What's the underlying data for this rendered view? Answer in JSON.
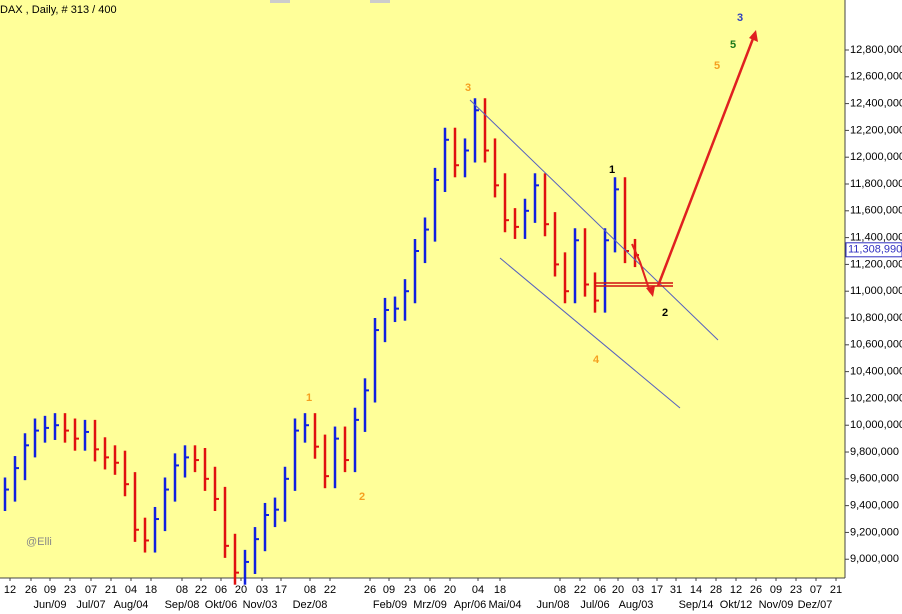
{
  "chart_data": {
    "type": "hlc",
    "title": "DAX , Daily, # 313 / 400",
    "watermark": "@Elli",
    "up_color": "#1020e0",
    "down_color": "#e01010",
    "x": [
      0,
      1,
      2,
      3,
      4,
      5,
      6,
      7,
      8,
      9,
      10,
      11,
      12,
      13,
      14,
      15,
      16,
      17,
      18,
      19,
      20,
      21,
      22,
      23,
      24,
      25,
      26,
      27,
      28,
      29,
      30,
      31,
      32,
      33,
      34,
      35,
      36,
      37,
      38,
      39,
      40,
      41,
      42,
      43,
      44,
      45,
      46,
      47,
      48,
      49,
      50,
      51,
      52,
      53,
      54,
      55,
      56,
      57,
      58,
      59,
      60,
      61,
      62,
      63
    ],
    "series": [
      {
        "name": "high",
        "values": [
          9610000,
          9770000,
          9940000,
          10050000,
          10070000,
          10090000,
          10090000,
          10050000,
          10040000,
          10040000,
          9910000,
          9850000,
          9810000,
          9650000,
          9310000,
          9390000,
          9610000,
          9790000,
          9850000,
          9850000,
          9830000,
          9690000,
          9540000,
          9190000,
          9070000,
          9240000,
          9420000,
          9460000,
          9690000,
          10050000,
          10090000,
          10090000,
          9930000,
          9990000,
          9990000,
          10130000,
          10350000,
          10800000,
          10950000,
          10960000,
          11090000,
          11390000,
          11550000,
          11920000,
          12220000,
          12220000,
          12140000,
          12440000,
          12440000,
          12140000,
          11880000,
          11620000,
          11690000,
          11880000,
          11880000,
          11590000,
          11290000,
          11470000,
          11470000,
          11140000,
          11470000,
          11850000,
          11850000,
          11390000
        ]
      },
      {
        "name": "low",
        "values": [
          9360000,
          9430000,
          9590000,
          9760000,
          9870000,
          9890000,
          9870000,
          9810000,
          9810000,
          9730000,
          9670000,
          9630000,
          9470000,
          9130000,
          9050000,
          9050000,
          9210000,
          9430000,
          9610000,
          9650000,
          9510000,
          9360000,
          9010000,
          8810000,
          8810000,
          8890000,
          9060000,
          9240000,
          9280000,
          9510000,
          9870000,
          9750000,
          9530000,
          9530000,
          9650000,
          9650000,
          9950000,
          10170000,
          10620000,
          10770000,
          10780000,
          10910000,
          11210000,
          11370000,
          11740000,
          11850000,
          11850000,
          11960000,
          11960000,
          11700000,
          11440000,
          11390000,
          11390000,
          11510000,
          11410000,
          11110000,
          10910000,
          10910000,
          10960000,
          10840000,
          10840000,
          11290000,
          11210000,
          11180000
        ]
      },
      {
        "name": "close",
        "values": [
          9520000,
          9680000,
          9850000,
          9960000,
          9980000,
          10000000,
          9960000,
          9900000,
          9950000,
          9820000,
          9760000,
          9720000,
          9560000,
          9220000,
          9140000,
          9300000,
          9520000,
          9700000,
          9760000,
          9740000,
          9600000,
          9450000,
          9100000,
          8900000,
          8980000,
          9150000,
          9330000,
          9370000,
          9600000,
          9960000,
          10000000,
          9840000,
          9620000,
          9900000,
          9740000,
          10040000,
          10260000,
          10710000,
          10860000,
          10870000,
          11000000,
          11300000,
          11460000,
          11830000,
          12130000,
          11940000,
          12050000,
          12350000,
          12050000,
          11790000,
          11530000,
          11480000,
          11600000,
          11790000,
          11500000,
          11200000,
          11000000,
          11380000,
          11050000,
          10930000,
          11380000,
          11760000,
          11300000,
          11270000
        ]
      }
    ],
    "last_price": {
      "value": 11308990,
      "label": "11,308,990"
    },
    "xlim": [
      -0.5,
      84
    ],
    "ylim": [
      8860000,
      13173000
    ],
    "yticks": [
      {
        "value": 9000000,
        "label": "9,000,000"
      },
      {
        "value": 9200000,
        "label": "9,200,000"
      },
      {
        "value": 9400000,
        "label": "9,400,000"
      },
      {
        "value": 9600000,
        "label": "9,600,000"
      },
      {
        "value": 9800000,
        "label": "9,800,000"
      },
      {
        "value": 10000000,
        "label": "10,000,000"
      },
      {
        "value": 10200000,
        "label": "10,200,000"
      },
      {
        "value": 10400000,
        "label": "10,400,000"
      },
      {
        "value": 10600000,
        "label": "10,600,000"
      },
      {
        "value": 10800000,
        "label": "10,800,000"
      },
      {
        "value": 11000000,
        "label": "11,000,000"
      },
      {
        "value": 11200000,
        "label": "11,200,000"
      },
      {
        "value": 11400000,
        "label": "11,400,000"
      },
      {
        "value": 11600000,
        "label": "11,600,000"
      },
      {
        "value": 11800000,
        "label": "11,800,000"
      },
      {
        "value": 12000000,
        "label": "12,000,000"
      },
      {
        "value": 12200000,
        "label": "12,200,000"
      },
      {
        "value": 12400000,
        "label": "12,400,000"
      },
      {
        "value": 12600000,
        "label": "12,600,000"
      },
      {
        "value": 12800000,
        "label": "12,800,000"
      }
    ],
    "xticks": [
      {
        "value": 0.5,
        "label": "12"
      },
      {
        "value": 2.6,
        "label": "26"
      },
      {
        "value": 4.5,
        "label": "09"
      },
      {
        "value": 6.5,
        "label": "23"
      },
      {
        "value": 8.6,
        "label": "07"
      },
      {
        "value": 10.6,
        "label": "21"
      },
      {
        "value": 12.6,
        "label": "04"
      },
      {
        "value": 14.6,
        "label": "18"
      },
      {
        "value": 17.7,
        "label": "08"
      },
      {
        "value": 19.6,
        "label": "22"
      },
      {
        "value": 21.6,
        "label": "06"
      },
      {
        "value": 23.6,
        "label": "20"
      },
      {
        "value": 25.7,
        "label": "03"
      },
      {
        "value": 27.6,
        "label": "17"
      },
      {
        "value": 30.5,
        "label": "08"
      },
      {
        "value": 32.5,
        "label": "22"
      },
      {
        "value": 36.5,
        "label": "26"
      },
      {
        "value": 38.4,
        "label": "09"
      },
      {
        "value": 40.5,
        "label": "23"
      },
      {
        "value": 42.5,
        "label": "06"
      },
      {
        "value": 44.5,
        "label": "20"
      },
      {
        "value": 47.3,
        "label": "04"
      },
      {
        "value": 49.5,
        "label": "18"
      },
      {
        "value": 55.5,
        "label": "08"
      },
      {
        "value": 57.5,
        "label": "22"
      },
      {
        "value": 59.5,
        "label": "06"
      },
      {
        "value": 61.3,
        "label": "20"
      },
      {
        "value": 63.3,
        "label": "03"
      },
      {
        "value": 65.2,
        "label": "17"
      },
      {
        "value": 67.1,
        "label": "31"
      },
      {
        "value": 69.1,
        "label": "14"
      },
      {
        "value": 71.1,
        "label": "28"
      },
      {
        "value": 73.1,
        "label": "12"
      },
      {
        "value": 75.1,
        "label": "26"
      },
      {
        "value": 77.1,
        "label": "09"
      },
      {
        "value": 79.1,
        "label": "23"
      },
      {
        "value": 81.1,
        "label": "07"
      },
      {
        "value": 83.1,
        "label": "21"
      }
    ],
    "month_labels": [
      {
        "value": 4.5,
        "label": "Jun/09"
      },
      {
        "value": 8.6,
        "label": "Jul/07"
      },
      {
        "value": 12.6,
        "label": "Aug/04"
      },
      {
        "value": 17.7,
        "label": "Sep/08"
      },
      {
        "value": 21.6,
        "label": "Okt/06"
      },
      {
        "value": 25.5,
        "label": "Nov/03"
      },
      {
        "value": 30.5,
        "label": "Dez/08"
      },
      {
        "value": 38.5,
        "label": "Feb/09"
      },
      {
        "value": 42.5,
        "label": "Mrz/09"
      },
      {
        "value": 46.5,
        "label": "Apr/06"
      },
      {
        "value": 50,
        "label": "Mai/04"
      },
      {
        "value": 54.8,
        "label": "Jun/08"
      },
      {
        "value": 59,
        "label": "Jul/06"
      },
      {
        "value": 63.1,
        "label": "Aug/03"
      },
      {
        "value": 69.1,
        "label": "Sep/14"
      },
      {
        "value": 73.1,
        "label": "Okt/12"
      },
      {
        "value": 77.1,
        "label": "Nov/09"
      },
      {
        "value": 81,
        "label": "Dez/07"
      }
    ],
    "annotations": [
      {
        "text": "3",
        "color": "#f5a020"
      },
      {
        "text": "1",
        "color": "#f5a020"
      },
      {
        "text": "2",
        "color": "#f5a020"
      },
      {
        "text": "4",
        "color": "#f5a020"
      },
      {
        "text": "1",
        "color": "#000000"
      },
      {
        "text": "2",
        "color": "#000000"
      },
      {
        "text": "5",
        "color": "#f5a020"
      },
      {
        "text": "5",
        "color": "#1a7a1a"
      },
      {
        "text": "3",
        "color": "#3040c0"
      }
    ]
  }
}
